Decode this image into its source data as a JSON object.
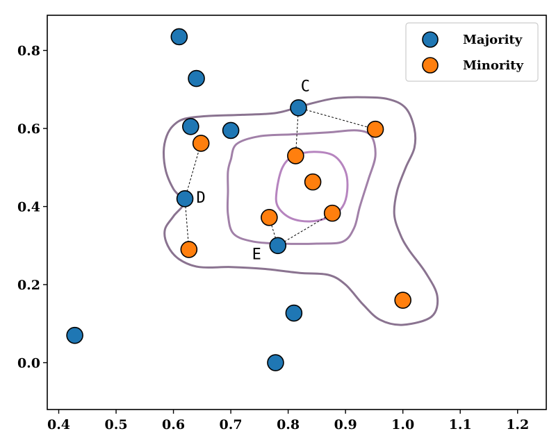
{
  "chart_data": {
    "type": "scatter",
    "xlim": [
      0.38,
      1.25
    ],
    "ylim": [
      -0.12,
      0.89
    ],
    "x_ticks": [
      0.4,
      0.5,
      0.6,
      0.7,
      0.8,
      0.9,
      1.0,
      1.1,
      1.2
    ],
    "y_ticks": [
      0.0,
      0.2,
      0.4,
      0.6,
      0.8
    ],
    "x_tick_labels": [
      "0.4",
      "0.5",
      "0.6",
      "0.7",
      "0.8",
      "0.9",
      "1.0",
      "1.1",
      "1.2"
    ],
    "y_tick_labels": [
      "0.0",
      "0.2",
      "0.4",
      "0.6",
      "0.8"
    ],
    "grid": false,
    "legend_position": "top-right",
    "series": [
      {
        "name": "Majority",
        "color": "#1f77b4",
        "points": [
          {
            "x": 0.61,
            "y": 0.835
          },
          {
            "x": 0.64,
            "y": 0.728
          },
          {
            "x": 0.818,
            "y": 0.653
          },
          {
            "x": 0.63,
            "y": 0.605
          },
          {
            "x": 0.7,
            "y": 0.595
          },
          {
            "x": 0.62,
            "y": 0.42
          },
          {
            "x": 0.782,
            "y": 0.3
          },
          {
            "x": 0.81,
            "y": 0.127
          },
          {
            "x": 0.428,
            "y": 0.07
          },
          {
            "x": 0.778,
            "y": 0.0
          }
        ]
      },
      {
        "name": "Minority",
        "color": "#ff7f0e",
        "points": [
          {
            "x": 0.952,
            "y": 0.598
          },
          {
            "x": 0.648,
            "y": 0.562
          },
          {
            "x": 0.813,
            "y": 0.53
          },
          {
            "x": 0.843,
            "y": 0.463
          },
          {
            "x": 0.877,
            "y": 0.383
          },
          {
            "x": 0.767,
            "y": 0.372
          },
          {
            "x": 0.627,
            "y": 0.29
          },
          {
            "x": 1.0,
            "y": 0.16
          }
        ]
      }
    ],
    "links": [
      {
        "from": [
          0.818,
          0.653
        ],
        "to": [
          0.952,
          0.598
        ]
      },
      {
        "from": [
          0.818,
          0.653
        ],
        "to": [
          0.813,
          0.53
        ]
      },
      {
        "from": [
          0.62,
          0.42
        ],
        "to": [
          0.648,
          0.562
        ]
      },
      {
        "from": [
          0.62,
          0.42
        ],
        "to": [
          0.627,
          0.29
        ]
      },
      {
        "from": [
          0.782,
          0.3
        ],
        "to": [
          0.767,
          0.372
        ]
      },
      {
        "from": [
          0.782,
          0.3
        ],
        "to": [
          0.877,
          0.383
        ]
      }
    ],
    "annotations": [
      {
        "text": "C",
        "x": 0.83,
        "y": 0.695
      },
      {
        "text": "D",
        "x": 0.648,
        "y": 0.41
      },
      {
        "text": "E",
        "x": 0.745,
        "y": 0.265
      }
    ],
    "contours": [
      {
        "level": "outer",
        "color": "#8a7390",
        "path": [
          [
            0.6,
            0.608
          ],
          [
            0.62,
            0.625
          ],
          [
            0.66,
            0.632
          ],
          [
            0.72,
            0.635
          ],
          [
            0.78,
            0.64
          ],
          [
            0.83,
            0.66
          ],
          [
            0.88,
            0.677
          ],
          [
            0.93,
            0.68
          ],
          [
            0.975,
            0.675
          ],
          [
            1.005,
            0.652
          ],
          [
            1.02,
            0.6
          ],
          [
            1.02,
            0.55
          ],
          [
            1.005,
            0.5
          ],
          [
            0.99,
            0.44
          ],
          [
            0.985,
            0.38
          ],
          [
            0.995,
            0.33
          ],
          [
            1.01,
            0.29
          ],
          [
            1.04,
            0.23
          ],
          [
            1.06,
            0.17
          ],
          [
            1.05,
            0.118
          ],
          [
            1.0,
            0.097
          ],
          [
            0.96,
            0.11
          ],
          [
            0.93,
            0.15
          ],
          [
            0.9,
            0.2
          ],
          [
            0.87,
            0.225
          ],
          [
            0.82,
            0.23
          ],
          [
            0.76,
            0.24
          ],
          [
            0.7,
            0.245
          ],
          [
            0.645,
            0.245
          ],
          [
            0.61,
            0.265
          ],
          [
            0.59,
            0.3
          ],
          [
            0.585,
            0.34
          ],
          [
            0.6,
            0.375
          ],
          [
            0.618,
            0.41
          ],
          [
            0.6,
            0.445
          ],
          [
            0.587,
            0.49
          ],
          [
            0.583,
            0.54
          ],
          [
            0.588,
            0.58
          ]
        ]
      },
      {
        "level": "middle",
        "color": "#a180a8",
        "path": [
          [
            0.7,
            0.52
          ],
          [
            0.71,
            0.56
          ],
          [
            0.75,
            0.58
          ],
          [
            0.81,
            0.585
          ],
          [
            0.87,
            0.59
          ],
          [
            0.92,
            0.595
          ],
          [
            0.945,
            0.58
          ],
          [
            0.952,
            0.53
          ],
          [
            0.94,
            0.47
          ],
          [
            0.925,
            0.4
          ],
          [
            0.915,
            0.345
          ],
          [
            0.895,
            0.31
          ],
          [
            0.85,
            0.305
          ],
          [
            0.79,
            0.305
          ],
          [
            0.74,
            0.31
          ],
          [
            0.705,
            0.33
          ],
          [
            0.695,
            0.38
          ],
          [
            0.695,
            0.44
          ],
          [
            0.695,
            0.49
          ]
        ]
      },
      {
        "level": "inner",
        "color": "#b684bf",
        "path": [
          [
            0.78,
            0.44
          ],
          [
            0.79,
            0.5
          ],
          [
            0.81,
            0.53
          ],
          [
            0.845,
            0.54
          ],
          [
            0.88,
            0.53
          ],
          [
            0.9,
            0.49
          ],
          [
            0.903,
            0.44
          ],
          [
            0.895,
            0.4
          ],
          [
            0.875,
            0.375
          ],
          [
            0.84,
            0.362
          ],
          [
            0.805,
            0.37
          ],
          [
            0.782,
            0.4
          ]
        ]
      }
    ]
  }
}
